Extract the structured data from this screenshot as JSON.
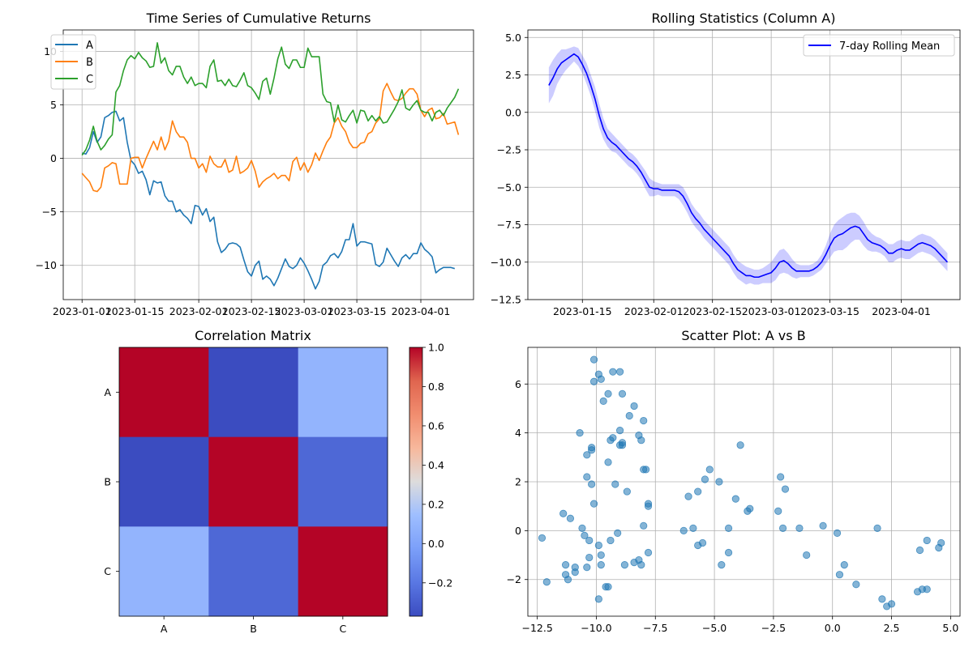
{
  "chart_data": [
    {
      "id": "ts",
      "type": "line",
      "title": "Time Series of Cumulative Returns",
      "xlabel": "",
      "ylabel": "",
      "x_start": "2023-01-01",
      "x_end": "2023-04-10",
      "xlim": [
        "2022-12-27",
        "2023-04-15"
      ],
      "ylim": [
        -13.2,
        12
      ],
      "xticks": [
        "2023-01-01",
        "2023-01-15",
        "2023-02-01",
        "2023-02-15",
        "2023-03-01",
        "2023-03-15",
        "2023-04-01"
      ],
      "yticks": [
        -10,
        -5,
        0,
        5,
        10
      ],
      "grid": true,
      "legend": "top-left",
      "series": [
        {
          "name": "A",
          "color": "#1f77b4",
          "values": [
            0.5,
            0.4,
            1.0,
            2.5,
            1.5,
            2.0,
            3.8,
            4.0,
            4.3,
            4.4,
            3.5,
            3.8,
            1.5,
            -0.2,
            -0.6,
            -1.4,
            -1.2,
            -2.0,
            -3.4,
            -2.1,
            -2.3,
            -2.2,
            -3.5,
            -4.0,
            -4.0,
            -5.0,
            -4.8,
            -5.3,
            -5.6,
            -6.1,
            -4.4,
            -4.5,
            -5.3,
            -4.7,
            -5.9,
            -5.5,
            -7.8,
            -8.8,
            -8.5,
            -8.0,
            -7.9,
            -8.0,
            -8.3,
            -9.5,
            -10.6,
            -11.0,
            -10.0,
            -9.6,
            -11.3,
            -11.0,
            -11.3,
            -11.9,
            -11.2,
            -10.3,
            -9.4,
            -10.1,
            -10.3,
            -10.0,
            -9.3,
            -9.8,
            -10.5,
            -11.3,
            -12.2,
            -11.5,
            -10.0,
            -9.7,
            -9.1,
            -8.9,
            -9.3,
            -8.7,
            -7.6,
            -7.6,
            -6.1,
            -8.2,
            -7.8,
            -7.8,
            -7.9,
            -8.0,
            -9.9,
            -10.1,
            -9.7,
            -8.4,
            -9.0,
            -9.6,
            -10.1,
            -9.3,
            -9.0,
            -9.4,
            -8.9,
            -8.9,
            -7.9,
            -8.5,
            -8.8,
            -9.2,
            -10.7,
            -10.4,
            -10.2,
            -10.2,
            -10.2,
            -10.3
          ]
        },
        {
          "name": "B",
          "color": "#ff7f0e",
          "values": [
            -1.4,
            -1.8,
            -2.2,
            -3.0,
            -3.1,
            -2.7,
            -0.9,
            -0.7,
            -0.4,
            -0.5,
            -2.4,
            -2.4,
            -2.4,
            0.0,
            0.1,
            0.1,
            -0.9,
            0.0,
            0.8,
            1.6,
            0.8,
            2.0,
            0.8,
            1.6,
            3.5,
            2.5,
            2.0,
            2.0,
            1.5,
            0.0,
            0.0,
            -0.9,
            -0.5,
            -1.3,
            0.2,
            -0.5,
            -0.8,
            -0.8,
            -0.1,
            -1.3,
            -1.1,
            0.2,
            -1.4,
            -1.2,
            -0.9,
            -0.2,
            -1.2,
            -2.7,
            -2.2,
            -1.9,
            -1.7,
            -1.4,
            -1.9,
            -1.6,
            -1.6,
            -2.1,
            -0.3,
            0.1,
            -1.1,
            -0.4,
            -1.3,
            -0.6,
            0.5,
            -0.2,
            0.7,
            1.5,
            2.0,
            3.3,
            3.8,
            3.0,
            2.5,
            1.5,
            1.0,
            1.0,
            1.4,
            1.5,
            2.3,
            2.5,
            3.3,
            3.7,
            6.3,
            7.0,
            6.2,
            5.5,
            5.4,
            5.6,
            6.1,
            6.5,
            6.5,
            6.0,
            4.5,
            3.9,
            4.5,
            4.7,
            3.7,
            3.8,
            4.2,
            3.2,
            3.3,
            3.4,
            2.2
          ]
        },
        {
          "name": "C",
          "color": "#2ca02c",
          "values": [
            0.3,
            0.8,
            1.7,
            3.0,
            1.6,
            0.8,
            1.2,
            1.8,
            2.2,
            6.2,
            6.8,
            8.2,
            9.2,
            9.6,
            9.3,
            9.9,
            9.4,
            9.1,
            8.5,
            8.6,
            10.8,
            8.9,
            9.4,
            8.2,
            7.8,
            8.6,
            8.6,
            7.6,
            7.0,
            7.6,
            6.8,
            7.0,
            7.0,
            6.6,
            8.6,
            9.2,
            7.2,
            7.3,
            6.8,
            7.4,
            6.8,
            6.7,
            7.3,
            8.0,
            6.8,
            6.6,
            6.1,
            5.5,
            7.2,
            7.5,
            6.0,
            7.5,
            9.3,
            10.4,
            8.8,
            8.4,
            9.2,
            9.2,
            8.5,
            8.5,
            10.3,
            9.5,
            9.5,
            9.5,
            6.0,
            5.3,
            5.2,
            3.4,
            5.0,
            3.6,
            3.4,
            4.0,
            4.5,
            3.3,
            4.5,
            4.4,
            3.5,
            4.0,
            3.5,
            3.9,
            3.3,
            3.4,
            4.0,
            4.6,
            5.3,
            6.4,
            4.7,
            4.5,
            5.0,
            5.4,
            4.5,
            4.3,
            4.3,
            3.5,
            4.3,
            4.5,
            4.0,
            4.7,
            5.2,
            5.7,
            6.5
          ]
        }
      ]
    },
    {
      "id": "roll",
      "type": "line",
      "title": "Rolling Statistics (Column A)",
      "xlabel": "",
      "ylabel": "",
      "x_start": "2023-01-07",
      "x_end": "2023-04-10",
      "xlim": [
        "2023-01-02",
        "2023-04-15"
      ],
      "ylim": [
        -12.5,
        5.5
      ],
      "xticks": [
        "2023-01-15",
        "2023-02-01",
        "2023-02-15",
        "2023-03-01",
        "2023-03-15",
        "2023-04-01"
      ],
      "yticks": [
        5.0,
        2.5,
        0.0,
        -2.5,
        -5.0,
        -7.5,
        -10.0,
        -12.5
      ],
      "grid": true,
      "legend": "top-right",
      "series": [
        {
          "name": "7-day Rolling Mean",
          "color": "#0000ff",
          "band_color": "#0000ff",
          "values": [
            1.8,
            2.3,
            2.9,
            3.3,
            3.5,
            3.7,
            3.9,
            3.7,
            3.2,
            2.6,
            1.8,
            0.9,
            -0.2,
            -1.1,
            -1.7,
            -2.0,
            -2.2,
            -2.5,
            -2.8,
            -3.1,
            -3.3,
            -3.6,
            -4.0,
            -4.5,
            -5.0,
            -5.1,
            -5.1,
            -5.2,
            -5.2,
            -5.2,
            -5.2,
            -5.3,
            -5.6,
            -6.1,
            -6.7,
            -7.1,
            -7.4,
            -7.8,
            -8.1,
            -8.4,
            -8.7,
            -9.0,
            -9.3,
            -9.6,
            -10.1,
            -10.5,
            -10.7,
            -10.9,
            -10.9,
            -11.0,
            -11.0,
            -10.9,
            -10.8,
            -10.7,
            -10.4,
            -10.0,
            -9.9,
            -10.1,
            -10.4,
            -10.6,
            -10.6,
            -10.6,
            -10.6,
            -10.5,
            -10.3,
            -10.0,
            -9.5,
            -8.9,
            -8.4,
            -8.2,
            -8.1,
            -7.9,
            -7.7,
            -7.6,
            -7.7,
            -8.1,
            -8.5,
            -8.7,
            -8.8,
            -8.9,
            -9.1,
            -9.4,
            -9.4,
            -9.2,
            -9.1,
            -9.2,
            -9.2,
            -9.0,
            -8.8,
            -8.7,
            -8.8,
            -8.9,
            -9.1,
            -9.4,
            -9.7,
            -10.0
          ],
          "std": [
            1.2,
            1.2,
            1.0,
            0.9,
            0.7,
            0.6,
            0.5,
            0.6,
            0.6,
            0.7,
            0.7,
            0.8,
            0.8,
            0.7,
            0.6,
            0.6,
            0.5,
            0.5,
            0.5,
            0.5,
            0.5,
            0.5,
            0.5,
            0.6,
            0.6,
            0.5,
            0.4,
            0.4,
            0.4,
            0.4,
            0.4,
            0.5,
            0.6,
            0.6,
            0.6,
            0.6,
            0.6,
            0.6,
            0.6,
            0.6,
            0.6,
            0.6,
            0.6,
            0.6,
            0.6,
            0.6,
            0.6,
            0.6,
            0.5,
            0.5,
            0.5,
            0.5,
            0.6,
            0.7,
            0.8,
            0.8,
            0.8,
            0.7,
            0.6,
            0.5,
            0.4,
            0.4,
            0.4,
            0.4,
            0.4,
            0.5,
            0.6,
            0.8,
            0.9,
            1.0,
            1.1,
            1.1,
            1.0,
            0.9,
            0.8,
            0.8,
            0.7,
            0.6,
            0.5,
            0.5,
            0.5,
            0.6,
            0.6,
            0.6,
            0.6,
            0.6,
            0.6,
            0.6,
            0.6,
            0.6,
            0.6,
            0.6,
            0.6,
            0.6,
            0.6,
            0.6
          ]
        }
      ]
    },
    {
      "id": "corr",
      "type": "heatmap",
      "title": "Correlation Matrix",
      "xlabel": "",
      "ylabel": "",
      "categories": [
        "A",
        "B",
        "C"
      ],
      "values": [
        [
          1.0,
          -0.37,
          0.09
        ],
        [
          -0.37,
          1.0,
          -0.26
        ],
        [
          0.09,
          -0.26,
          1.0
        ]
      ],
      "colormap": "coolwarm",
      "vmin": -0.37,
      "vmax": 1.0,
      "colorbar_ticks": [
        1.0,
        0.8,
        0.6,
        0.4,
        0.2,
        0.0,
        -0.2
      ]
    },
    {
      "id": "scatter",
      "type": "scatter",
      "title": "Scatter Plot: A vs B",
      "xlabel": "",
      "ylabel": "",
      "xlim": [
        -12.9,
        5.4
      ],
      "ylim": [
        -3.5,
        7.5
      ],
      "xticks": [
        -12.5,
        -10.0,
        -7.5,
        -5.0,
        -2.5,
        0.0,
        2.5,
        5.0
      ],
      "yticks": [
        -2,
        0,
        2,
        4,
        6
      ],
      "grid": true,
      "color": "#1f77b4",
      "points": [
        [
          -12.3,
          -0.3
        ],
        [
          -12.1,
          -2.1
        ],
        [
          -11.4,
          0.7
        ],
        [
          -11.3,
          -1.4
        ],
        [
          -11.3,
          -1.8
        ],
        [
          -11.2,
          -2.0
        ],
        [
          -11.1,
          0.5
        ],
        [
          -10.9,
          -1.5
        ],
        [
          -10.9,
          -1.7
        ],
        [
          -10.7,
          4.0
        ],
        [
          -10.6,
          0.1
        ],
        [
          -10.5,
          -0.2
        ],
        [
          -10.4,
          3.1
        ],
        [
          -10.4,
          2.2
        ],
        [
          -10.4,
          -1.5
        ],
        [
          -10.3,
          -0.4
        ],
        [
          -10.3,
          -1.1
        ],
        [
          -10.2,
          3.4
        ],
        [
          -10.2,
          3.3
        ],
        [
          -10.2,
          1.9
        ],
        [
          -10.1,
          7.0
        ],
        [
          -10.1,
          6.1
        ],
        [
          -10.1,
          1.1
        ],
        [
          -9.9,
          6.4
        ],
        [
          -9.9,
          -0.6
        ],
        [
          -9.9,
          -2.8
        ],
        [
          -9.8,
          6.2
        ],
        [
          -9.8,
          -1.0
        ],
        [
          -9.8,
          -1.4
        ],
        [
          -9.7,
          5.3
        ],
        [
          -9.6,
          -2.3
        ],
        [
          -9.5,
          -2.3
        ],
        [
          -9.5,
          5.6
        ],
        [
          -9.5,
          2.8
        ],
        [
          -9.4,
          3.7
        ],
        [
          -9.4,
          -0.4
        ],
        [
          -9.3,
          6.5
        ],
        [
          -9.3,
          3.8
        ],
        [
          -9.2,
          1.9
        ],
        [
          -9.1,
          -0.1
        ],
        [
          -9.0,
          6.5
        ],
        [
          -9.0,
          4.1
        ],
        [
          -9.0,
          3.5
        ],
        [
          -8.9,
          5.6
        ],
        [
          -8.9,
          3.6
        ],
        [
          -8.9,
          3.5
        ],
        [
          -8.8,
          -1.4
        ],
        [
          -8.7,
          1.6
        ],
        [
          -8.6,
          4.7
        ],
        [
          -8.4,
          5.1
        ],
        [
          -8.4,
          -1.3
        ],
        [
          -8.2,
          3.9
        ],
        [
          -8.2,
          -1.2
        ],
        [
          -8.1,
          3.7
        ],
        [
          -8.1,
          -1.4
        ],
        [
          -8.0,
          4.5
        ],
        [
          -8.0,
          2.5
        ],
        [
          -8.0,
          0.2
        ],
        [
          -7.9,
          2.5
        ],
        [
          -7.8,
          1.1
        ],
        [
          -7.8,
          1.0
        ],
        [
          -7.8,
          -0.9
        ],
        [
          -6.3,
          0.0
        ],
        [
          -6.1,
          1.4
        ],
        [
          -5.9,
          0.1
        ],
        [
          -5.7,
          1.6
        ],
        [
          -5.7,
          -0.6
        ],
        [
          -5.5,
          -0.5
        ],
        [
          -5.4,
          2.1
        ],
        [
          -5.2,
          2.5
        ],
        [
          -4.8,
          2.0
        ],
        [
          -4.7,
          -1.4
        ],
        [
          -4.4,
          0.1
        ],
        [
          -4.4,
          -0.9
        ],
        [
          -4.1,
          1.3
        ],
        [
          -3.9,
          3.5
        ],
        [
          -3.6,
          0.8
        ],
        [
          -3.5,
          0.9
        ],
        [
          -2.3,
          0.8
        ],
        [
          -2.2,
          2.2
        ],
        [
          -2.1,
          0.1
        ],
        [
          -2.0,
          1.7
        ],
        [
          -1.4,
          0.1
        ],
        [
          -1.1,
          -1.0
        ],
        [
          -0.4,
          0.2
        ],
        [
          0.2,
          -0.1
        ],
        [
          0.3,
          -1.8
        ],
        [
          0.5,
          -1.4
        ],
        [
          1.0,
          -2.2
        ],
        [
          1.9,
          0.1
        ],
        [
          2.1,
          -2.8
        ],
        [
          2.3,
          -3.1
        ],
        [
          2.5,
          -3.0
        ],
        [
          3.6,
          -2.5
        ],
        [
          3.7,
          -0.8
        ],
        [
          3.8,
          -2.4
        ],
        [
          4.0,
          -0.4
        ],
        [
          4.0,
          -2.4
        ],
        [
          4.5,
          -0.7
        ],
        [
          4.6,
          -0.5
        ]
      ]
    }
  ]
}
